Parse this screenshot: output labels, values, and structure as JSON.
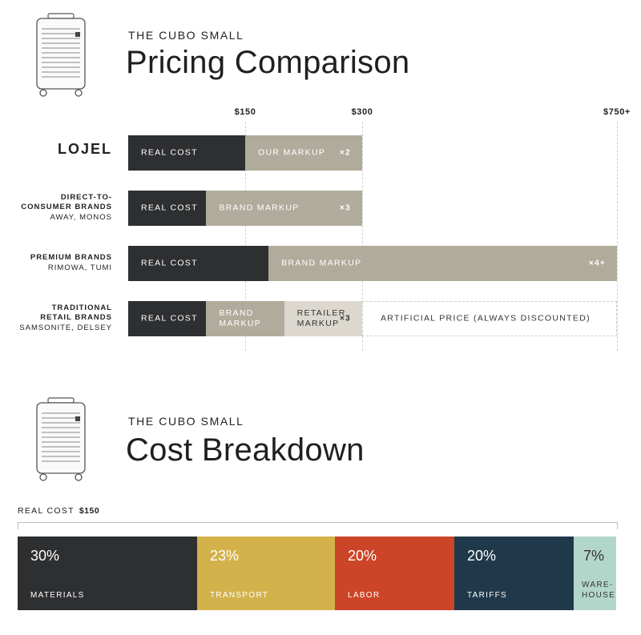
{
  "pricing": {
    "eyebrow": "THE CUBO SMALL",
    "title": "Pricing Comparison",
    "axis_labels": [
      "$150",
      "$300",
      "$750+"
    ]
  },
  "cost": {
    "eyebrow": "THE CUBO SMALL",
    "title": "Cost Breakdown",
    "real_cost_label": "REAL COST",
    "real_cost_value": "$150"
  },
  "colors": {
    "real_cost": "#2e2f31",
    "markup": "#b1ab9b",
    "retailer_markup": "#dcd8d0",
    "materials": "#2e2f31",
    "transport": "#d3b24c",
    "labor": "#cc4529",
    "tariffs": "#20394a",
    "warehouse": "#b3d6cb"
  },
  "chart_data": [
    {
      "type": "bar",
      "title": "Pricing Comparison",
      "x_ticks": [
        "$150",
        "$300",
        "$750+"
      ],
      "rows": [
        {
          "name": "LOJEL",
          "sub": "",
          "segments": [
            {
              "label": "REAL COST",
              "value": 150,
              "color": "real_cost"
            },
            {
              "label": "OUR MARKUP",
              "value": 150,
              "color": "markup",
              "mult": "×2"
            }
          ]
        },
        {
          "name": "DIRECT-TO-CONSUMER BRANDS",
          "name_lines": [
            "DIRECT-TO-",
            "CONSUMER BRANDS"
          ],
          "sub": "AWAY, MONOS",
          "segments": [
            {
              "label": "REAL COST",
              "value": 100,
              "color": "real_cost"
            },
            {
              "label": "BRAND MARKUP",
              "value": 200,
              "color": "markup",
              "mult": "×3"
            }
          ]
        },
        {
          "name": "PREMIUM BRANDS",
          "name_lines": [
            "PREMIUM BRANDS"
          ],
          "sub": "RIMOWA, TUMI",
          "segments": [
            {
              "label": "REAL COST",
              "value": 180,
              "color": "real_cost"
            },
            {
              "label": "BRAND MARKUP",
              "value": 570,
              "color": "markup",
              "mult": "×4+"
            }
          ]
        },
        {
          "name": "TRADITIONAL RETAIL BRANDS",
          "name_lines": [
            "TRADITIONAL",
            "RETAIL BRANDS"
          ],
          "sub": "SAMSONITE, DELSEY",
          "segments": [
            {
              "label": "REAL COST",
              "value": 100,
              "color": "real_cost"
            },
            {
              "label": "BRAND MARKUP",
              "label_lines": [
                "BRAND",
                "MARKUP"
              ],
              "value": 100,
              "color": "markup"
            },
            {
              "label": "RETAILER MARKUP",
              "label_lines": [
                "RETAILER",
                "MARKUP"
              ],
              "value": 100,
              "color": "retailer_markup",
              "mult": "×3"
            },
            {
              "label": "ARTIFICIAL PRICE (ALWAYS DISCOUNTED)",
              "value": 450,
              "color": "outline"
            }
          ]
        }
      ]
    },
    {
      "type": "bar",
      "title": "Cost Breakdown",
      "total_label": "REAL COST $150",
      "segments": [
        {
          "label": "MATERIALS",
          "label_lines": [
            "MATERIALS"
          ],
          "percent": 30,
          "pct_text": "30%",
          "color": "materials"
        },
        {
          "label": "TRANSPORT",
          "label_lines": [
            "TRANSPORT"
          ],
          "percent": 23,
          "pct_text": "23%",
          "color": "transport"
        },
        {
          "label": "LABOR",
          "label_lines": [
            "LABOR"
          ],
          "percent": 20,
          "pct_text": "20%",
          "color": "labor"
        },
        {
          "label": "TARIFFS",
          "label_lines": [
            "TARIFFS"
          ],
          "percent": 20,
          "pct_text": "20%",
          "color": "tariffs"
        },
        {
          "label": "WARE-HOUSE",
          "label_lines": [
            "WARE-",
            "HOUSE"
          ],
          "percent": 7,
          "pct_text": "7%",
          "color": "warehouse"
        }
      ]
    }
  ]
}
